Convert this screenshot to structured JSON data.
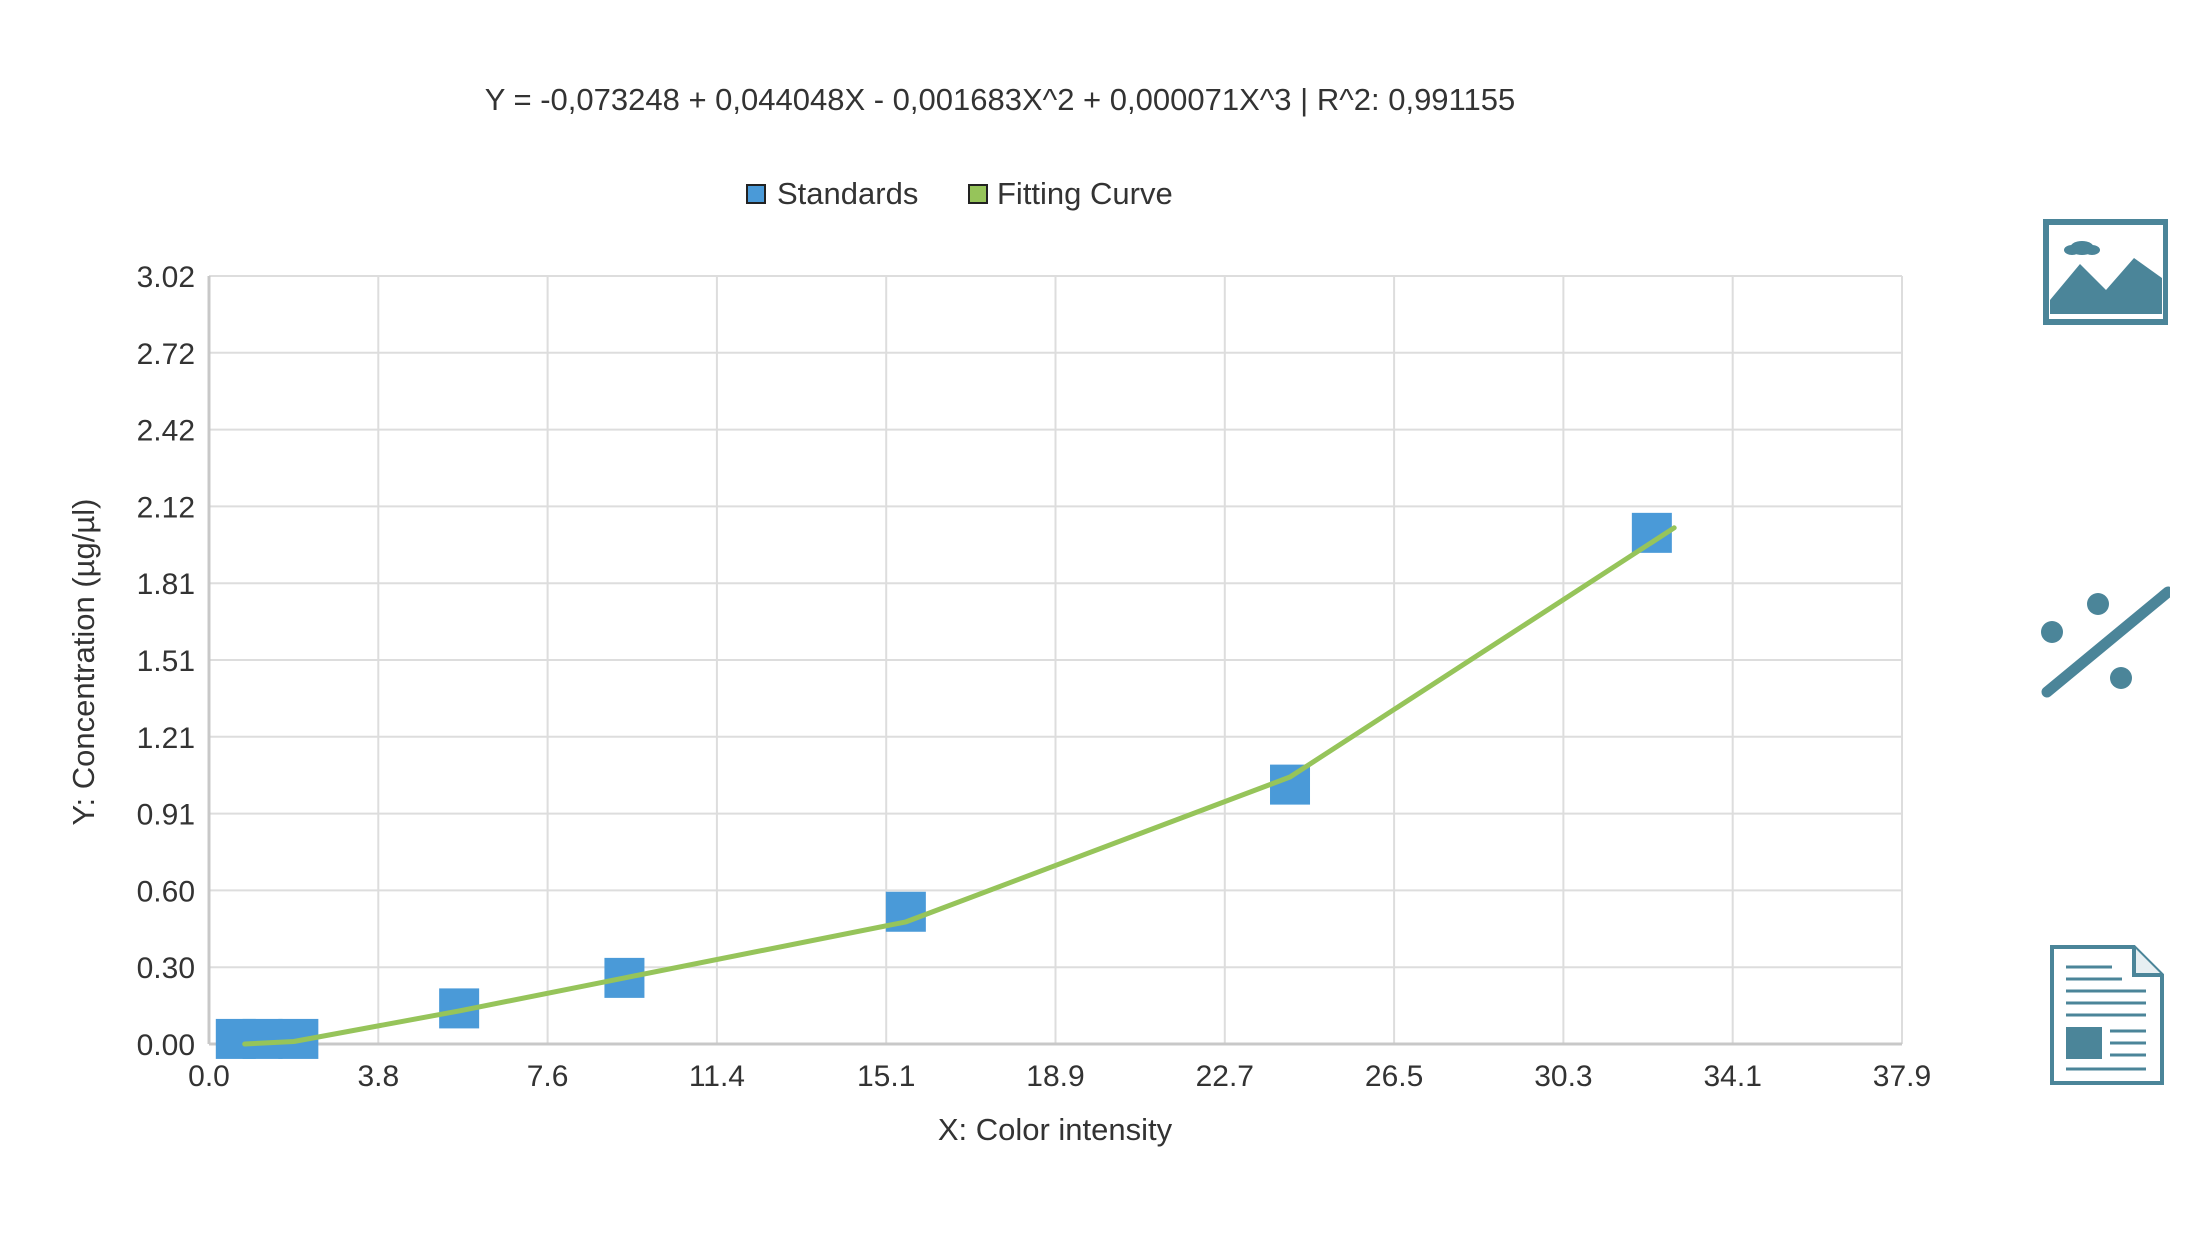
{
  "chart_data": {
    "type": "scatter",
    "title": "Y = -0,073248 + 0,044048X - 0,001683X^2 + 0,000071X^3 | R^2: 0,991155",
    "xlabel": "X: Color intensity",
    "ylabel": "Y: Concentration (µg/µl)",
    "xlim": [
      0,
      37.9
    ],
    "ylim": [
      0,
      3.02
    ],
    "x_ticks": [
      "0.0",
      "3.8",
      "7.6",
      "11.4",
      "15.1",
      "18.9",
      "22.7",
      "26.5",
      "30.3",
      "34.1",
      "37.9"
    ],
    "x_tick_values": [
      0,
      3.79,
      7.58,
      11.37,
      15.16,
      18.95,
      22.74,
      26.53,
      30.32,
      34.11,
      37.9
    ],
    "y_ticks": [
      "0.00",
      "0.30",
      "0.60",
      "0.91",
      "1.21",
      "1.51",
      "1.81",
      "2.12",
      "2.42",
      "2.72",
      "3.02"
    ],
    "y_tick_values": [
      0,
      0.302,
      0.604,
      0.906,
      1.208,
      1.51,
      1.812,
      2.114,
      2.416,
      2.718,
      3.02
    ],
    "grid": true,
    "legend_position": "top-center",
    "series": [
      {
        "name": "Standards",
        "kind": "points",
        "color": "#4a9ad8",
        "points": [
          {
            "x": 0.6,
            "y": 0.02
          },
          {
            "x": 1.2,
            "y": 0.02
          },
          {
            "x": 2.0,
            "y": 0.02
          },
          {
            "x": 5.6,
            "y": 0.14
          },
          {
            "x": 9.3,
            "y": 0.26
          },
          {
            "x": 15.6,
            "y": 0.52
          },
          {
            "x": 24.2,
            "y": 1.02
          },
          {
            "x": 32.3,
            "y": 2.01
          }
        ]
      },
      {
        "name": "Fitting Curve",
        "kind": "line",
        "color": "#96c45a",
        "points": [
          {
            "x": 0.8,
            "y": 0.0
          },
          {
            "x": 1.9,
            "y": 0.01
          },
          {
            "x": 5.6,
            "y": 0.13
          },
          {
            "x": 9.3,
            "y": 0.26
          },
          {
            "x": 15.6,
            "y": 0.48
          },
          {
            "x": 24.2,
            "y": 1.05
          },
          {
            "x": 32.8,
            "y": 2.03
          }
        ]
      }
    ]
  },
  "colors": {
    "grid": "#dddddd",
    "axis": "#c8c8c8",
    "text": "#333333",
    "icon": "#4b8599"
  },
  "toolbar": {
    "icons": [
      "image-icon",
      "percent-icon",
      "report-document-icon"
    ]
  }
}
